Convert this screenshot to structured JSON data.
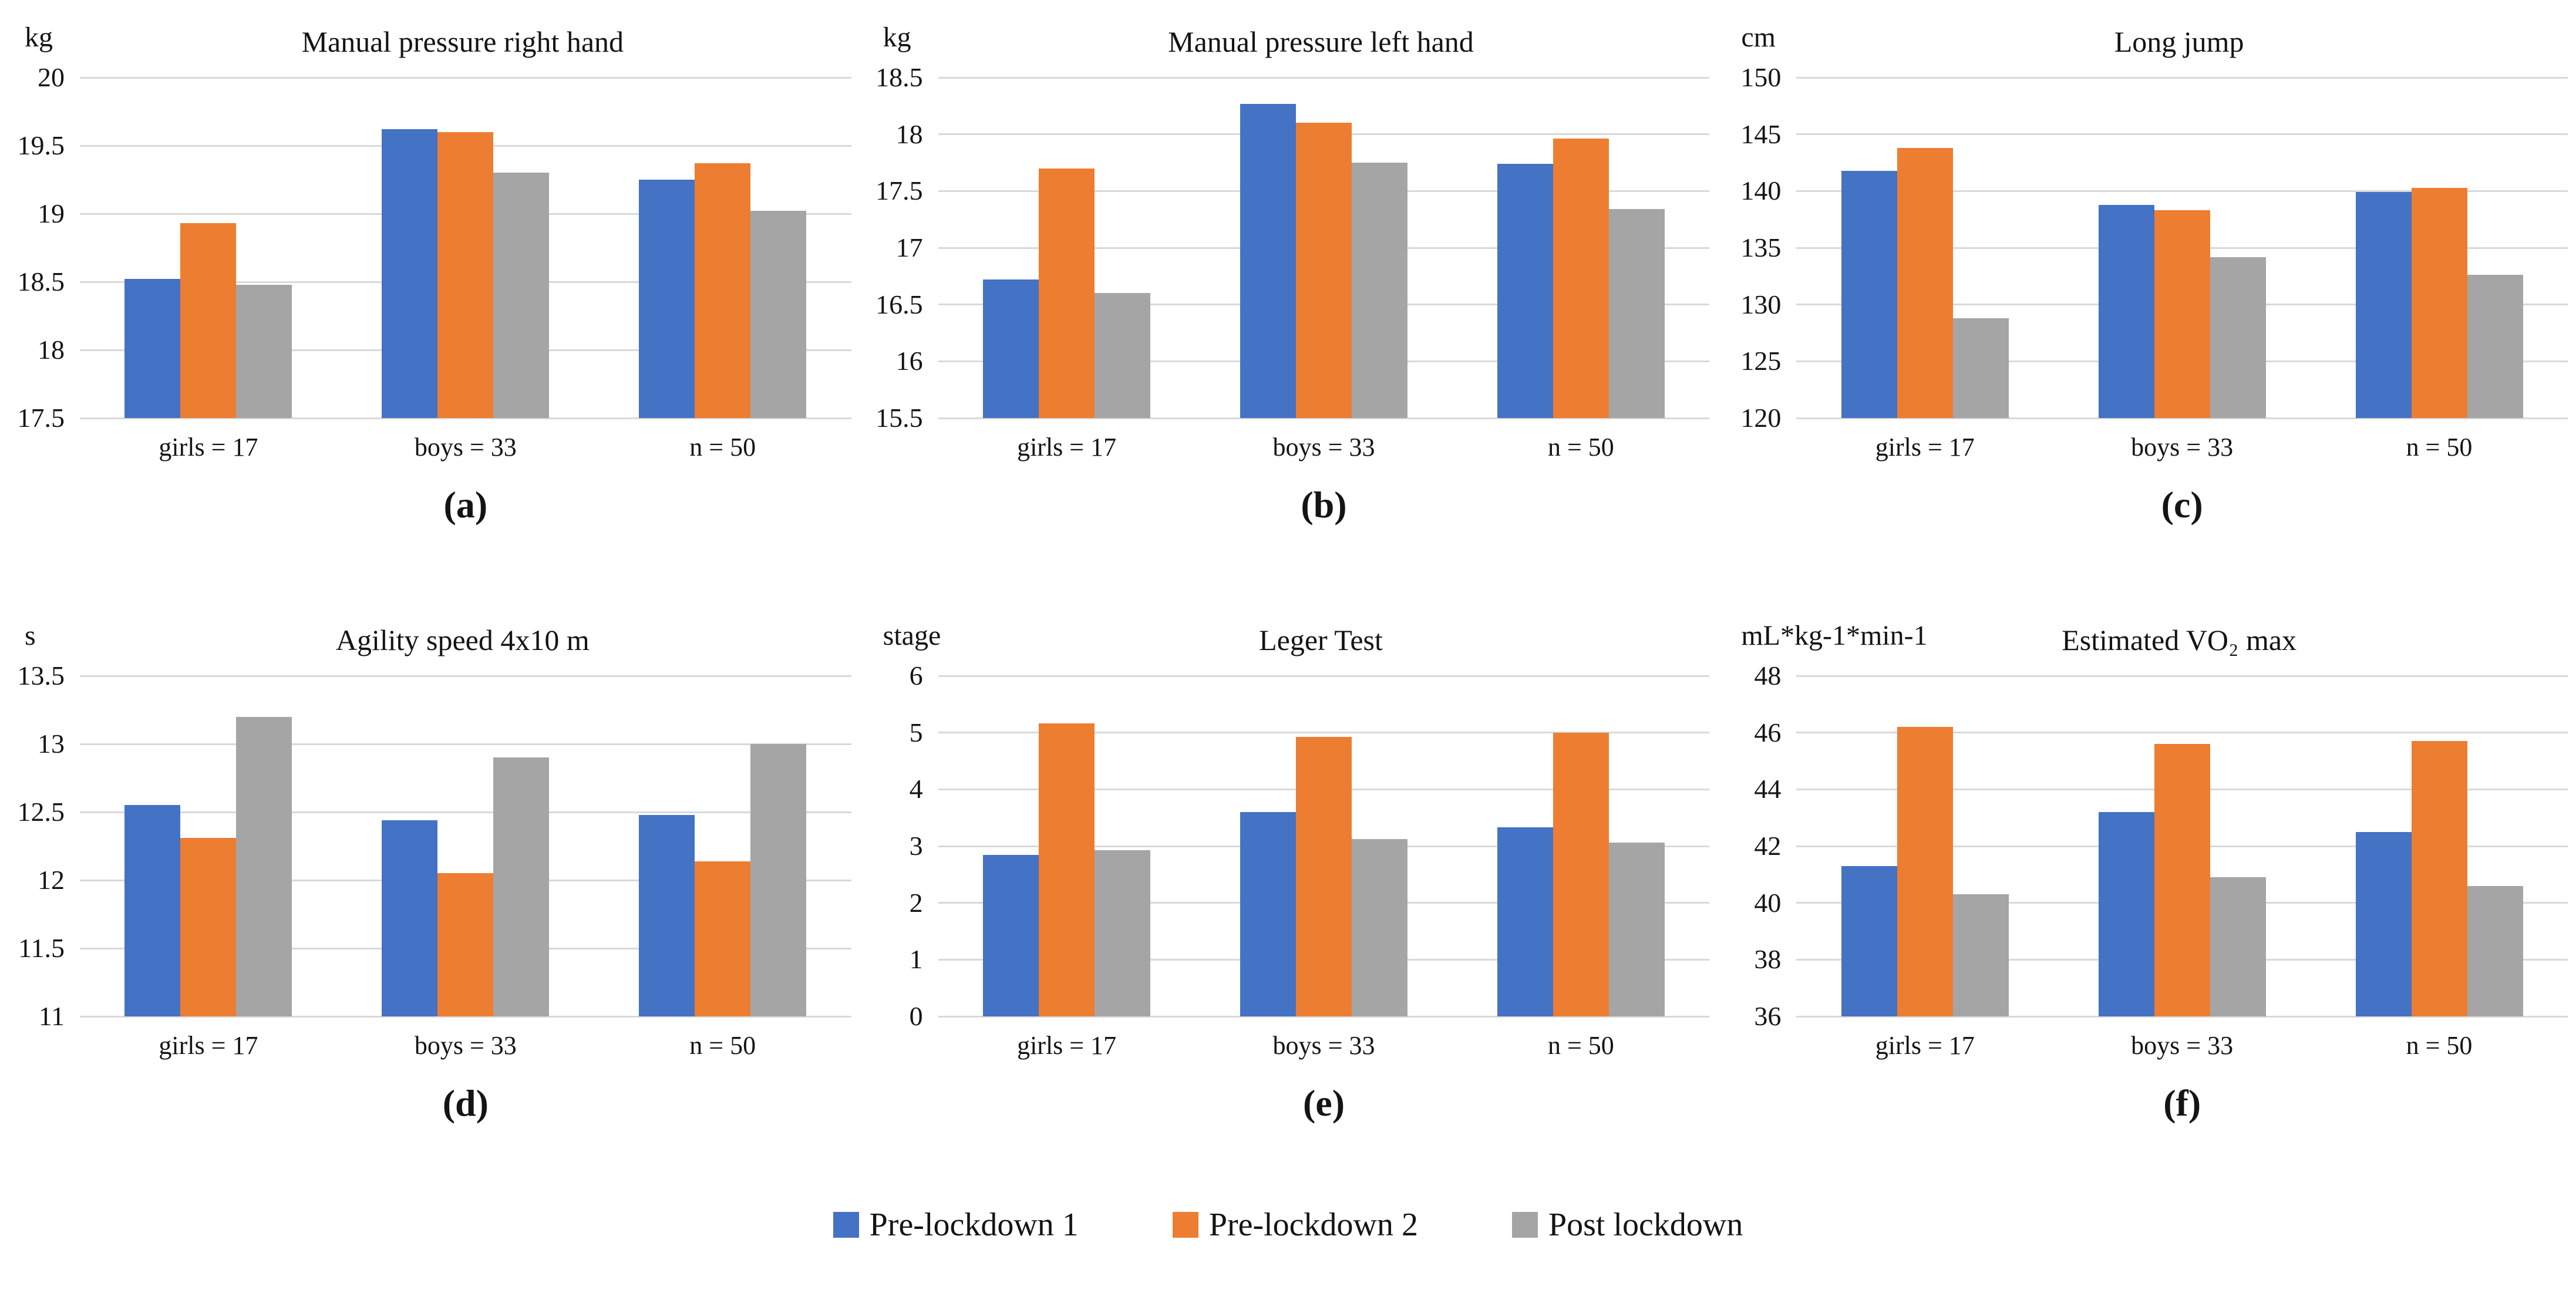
{
  "figure": {
    "background": "#ffffff",
    "text_color": "#141414",
    "gridline_color": "#d9d9d9"
  },
  "legend": {
    "position": "bottom-center",
    "items": [
      {
        "label": "Pre-lockdown 1",
        "color": "#4472C4"
      },
      {
        "label": "Pre-lockdown 2",
        "color": "#ED7D31"
      },
      {
        "label": "Post lockdown",
        "color": "#A5A5A5"
      }
    ]
  },
  "chart_data": [
    {
      "id": "a",
      "type": "bar",
      "title": "Manual pressure right hand",
      "ylabel": "kg",
      "caption": "(a)",
      "categories": [
        "girls = 17",
        "boys = 33",
        "n = 50"
      ],
      "ylim": [
        17.5,
        20
      ],
      "yticks": [
        17.5,
        18,
        18.5,
        19,
        19.5,
        20
      ],
      "grid": true,
      "series": [
        {
          "name": "Pre-lockdown 1",
          "color": "#4472C4",
          "values": [
            18.52,
            19.62,
            19.25
          ]
        },
        {
          "name": "Pre-lockdown 2",
          "color": "#ED7D31",
          "values": [
            18.93,
            19.6,
            19.37
          ]
        },
        {
          "name": "Post lockdown",
          "color": "#A5A5A5",
          "values": [
            18.48,
            19.3,
            19.02
          ]
        }
      ]
    },
    {
      "id": "b",
      "type": "bar",
      "title": "Manual pressure left hand",
      "ylabel": "kg",
      "caption": "(b)",
      "categories": [
        "girls = 17",
        "boys = 33",
        "n = 50"
      ],
      "ylim": [
        15.5,
        18.5
      ],
      "yticks": [
        15.5,
        16,
        16.5,
        17,
        17.5,
        18,
        18.5
      ],
      "grid": true,
      "series": [
        {
          "name": "Pre-lockdown 1",
          "color": "#4472C4",
          "values": [
            16.72,
            18.27,
            17.74
          ]
        },
        {
          "name": "Pre-lockdown 2",
          "color": "#ED7D31",
          "values": [
            17.7,
            18.1,
            17.96
          ]
        },
        {
          "name": "Post lockdown",
          "color": "#A5A5A5",
          "values": [
            16.6,
            17.75,
            17.34
          ]
        }
      ]
    },
    {
      "id": "c",
      "type": "bar",
      "title": "Long jump",
      "ylabel": "cm",
      "caption": "(c)",
      "categories": [
        "girls = 17",
        "boys = 33",
        "n = 50"
      ],
      "ylim": [
        120,
        150
      ],
      "yticks": [
        120,
        125,
        130,
        135,
        140,
        145,
        150
      ],
      "grid": true,
      "series": [
        {
          "name": "Pre-lockdown 1",
          "color": "#4472C4",
          "values": [
            141.8,
            138.8,
            139.9
          ]
        },
        {
          "name": "Pre-lockdown 2",
          "color": "#ED7D31",
          "values": [
            143.8,
            138.3,
            140.3
          ]
        },
        {
          "name": "Post lockdown",
          "color": "#A5A5A5",
          "values": [
            128.8,
            134.2,
            132.6
          ]
        }
      ]
    },
    {
      "id": "d",
      "type": "bar",
      "title": "Agility speed 4x10 m",
      "ylabel": "s",
      "caption": "(d)",
      "categories": [
        "girls = 17",
        "boys = 33",
        "n = 50"
      ],
      "ylim": [
        11,
        13.5
      ],
      "yticks": [
        11,
        11.5,
        12,
        12.5,
        13,
        13.5
      ],
      "grid": true,
      "series": [
        {
          "name": "Pre-lockdown 1",
          "color": "#4472C4",
          "values": [
            12.55,
            12.44,
            12.48
          ]
        },
        {
          "name": "Pre-lockdown 2",
          "color": "#ED7D31",
          "values": [
            12.31,
            12.05,
            12.14
          ]
        },
        {
          "name": "Post lockdown",
          "color": "#A5A5A5",
          "values": [
            13.2,
            12.9,
            13.0
          ]
        }
      ]
    },
    {
      "id": "e",
      "type": "bar",
      "title": "Leger Test",
      "ylabel": "stage",
      "caption": "(e)",
      "categories": [
        "girls = 17",
        "boys = 33",
        "n = 50"
      ],
      "ylim": [
        0,
        6
      ],
      "yticks": [
        0,
        1,
        2,
        3,
        4,
        5,
        6
      ],
      "grid": true,
      "series": [
        {
          "name": "Pre-lockdown 1",
          "color": "#4472C4",
          "values": [
            2.85,
            3.6,
            3.33
          ]
        },
        {
          "name": "Pre-lockdown 2",
          "color": "#ED7D31",
          "values": [
            5.16,
            4.92,
            5.0
          ]
        },
        {
          "name": "Post lockdown",
          "color": "#A5A5A5",
          "values": [
            2.93,
            3.12,
            3.06
          ]
        }
      ]
    },
    {
      "id": "f",
      "type": "bar",
      "title": "Estimated VO₂ max",
      "ylabel": "mL*kg-1*min-1",
      "caption": "(f)",
      "categories": [
        "girls = 17",
        "boys = 33",
        "n = 50"
      ],
      "ylim": [
        36,
        48
      ],
      "yticks": [
        36,
        38,
        40,
        42,
        44,
        46,
        48
      ],
      "grid": true,
      "series": [
        {
          "name": "Pre-lockdown 1",
          "color": "#4472C4",
          "values": [
            41.3,
            43.2,
            42.5
          ]
        },
        {
          "name": "Pre-lockdown 2",
          "color": "#ED7D31",
          "values": [
            46.2,
            45.6,
            45.7
          ]
        },
        {
          "name": "Post lockdown",
          "color": "#A5A5A5",
          "values": [
            40.3,
            40.9,
            40.6
          ]
        }
      ]
    }
  ]
}
